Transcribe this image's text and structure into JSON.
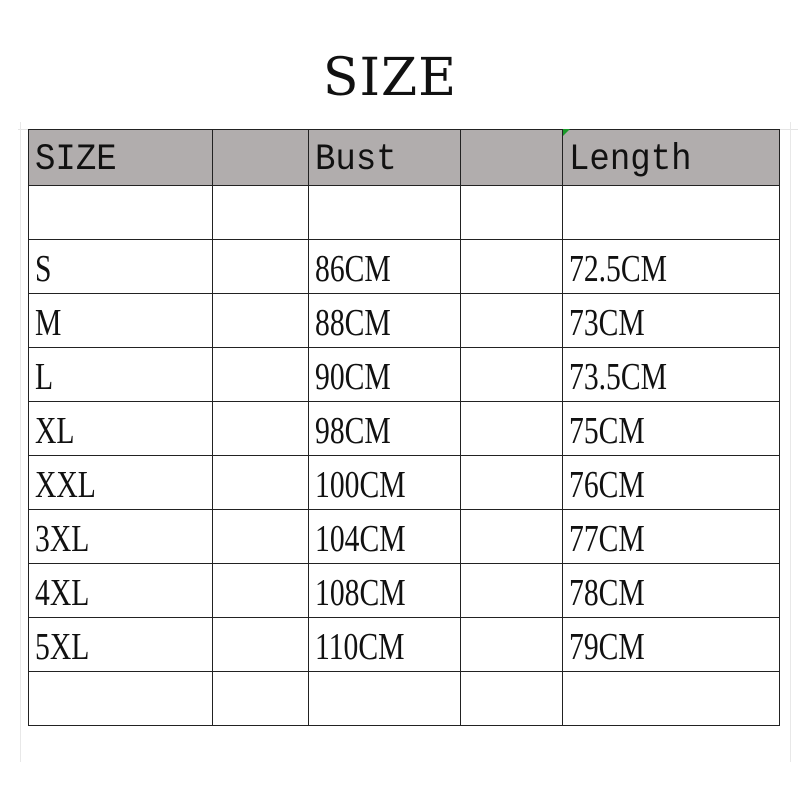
{
  "title": "SIZE",
  "table": {
    "headers": [
      "SIZE",
      "",
      "Bust",
      "",
      "Length"
    ],
    "rows": [
      [
        "",
        "",
        "",
        "",
        ""
      ],
      [
        "S",
        "",
        "86CM",
        "",
        "72.5CM"
      ],
      [
        "M",
        "",
        "88CM",
        "",
        "73CM"
      ],
      [
        "L",
        "",
        "90CM",
        "",
        "73.5CM"
      ],
      [
        "XL",
        "",
        "98CM",
        "",
        "75CM"
      ],
      [
        "XXL",
        "",
        "100CM",
        "",
        "76CM"
      ],
      [
        "3XL",
        "",
        "104CM",
        "",
        "77CM"
      ],
      [
        "4XL",
        "",
        "108CM",
        "",
        "78CM"
      ],
      [
        "5XL",
        "",
        "110CM",
        "",
        "79CM"
      ],
      [
        "",
        "",
        "",
        "",
        ""
      ]
    ]
  },
  "colors": {
    "header_bg": "#b1adad",
    "grid": "#222222",
    "cell_marker": "#1a9a2a"
  }
}
